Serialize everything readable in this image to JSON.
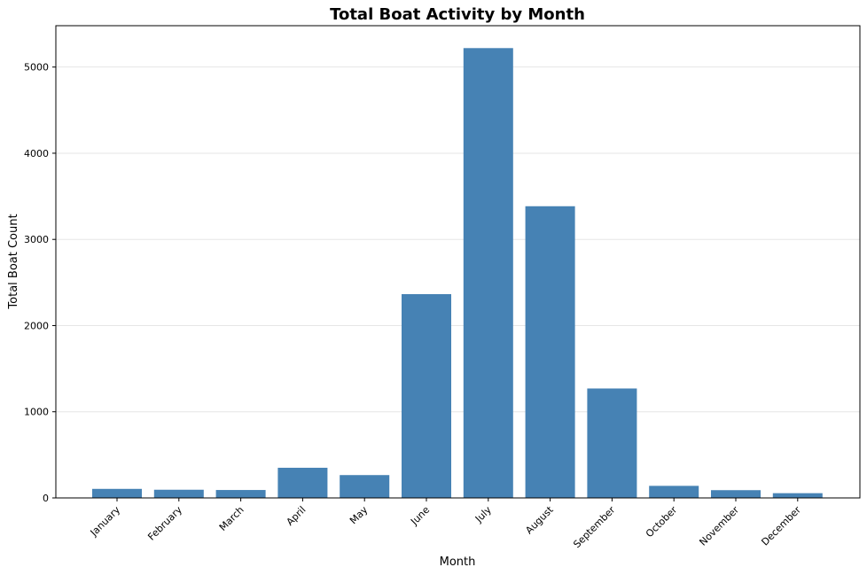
{
  "chart_data": {
    "type": "bar",
    "title": "Total Boat Activity by Month",
    "xlabel": "Month",
    "ylabel": "Total Boat Count",
    "categories": [
      "January",
      "February",
      "March",
      "April",
      "May",
      "June",
      "July",
      "August",
      "September",
      "October",
      "November",
      "December"
    ],
    "values": [
      105,
      95,
      92,
      350,
      265,
      2365,
      5220,
      3385,
      1270,
      140,
      90,
      55
    ],
    "ylim": [
      0,
      5480
    ],
    "yticks": [
      0,
      1000,
      2000,
      3000,
      4000,
      5000
    ],
    "grid": "y",
    "bar_color": "#4682b4"
  }
}
